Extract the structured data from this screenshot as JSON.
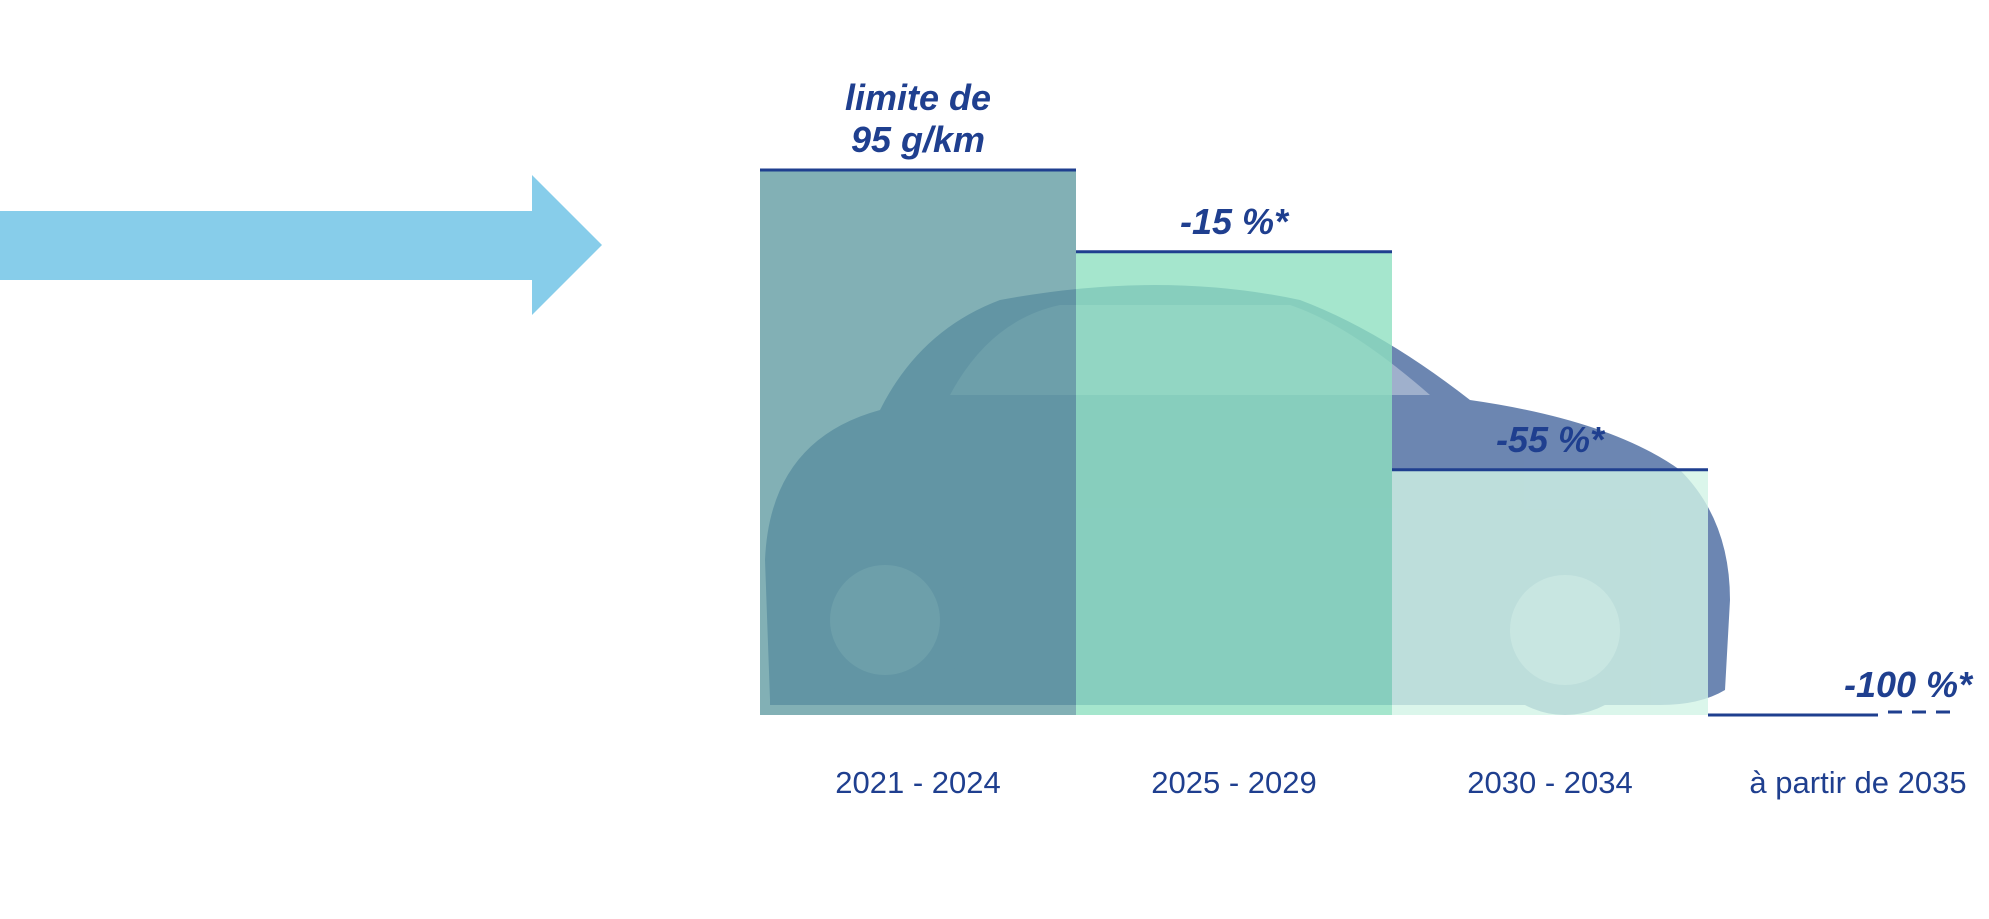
{
  "chart_data": {
    "type": "bar",
    "title": "",
    "xlabel": "",
    "ylabel": "",
    "ylim": [
      0,
      100
    ],
    "categories": [
      "2021 - 2024",
      "2025 - 2029",
      "2030 - 2034",
      "à partir de 2035"
    ],
    "values": [
      100,
      85,
      45,
      0
    ],
    "bar_labels": [
      [
        "limite de",
        "95 g/km"
      ],
      [
        "-15 %*"
      ],
      [
        "-55 %*"
      ],
      [
        "-100 %*"
      ]
    ],
    "bar_colors": [
      "#5f9aa0",
      "#8fe0c0",
      "#d2f4e6",
      "#ffffff"
    ],
    "grid": false,
    "legend": "none"
  },
  "decoration": {
    "arrow_color": "#87cdea",
    "text_color": "#1f3f8f",
    "car_color": "#3b5e98",
    "car_icon": "car-icon",
    "arrow_icon": "right-arrow-icon"
  }
}
